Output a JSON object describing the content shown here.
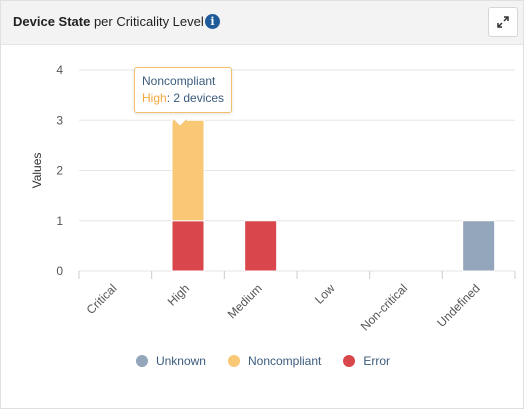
{
  "header": {
    "title_bold": "Device State",
    "title_rest": " per Criticality Level",
    "info_icon": "info-icon",
    "expand_icon": "expand-icon"
  },
  "tooltip": {
    "series": "Noncompliant",
    "category": "High",
    "value_text": ": 2 devices"
  },
  "colors": {
    "Unknown": "#93a6bc",
    "Noncompliant": "#f8c874",
    "Error": "#d9474d",
    "grid": "#e6e6e6",
    "axis_text": "#555555"
  },
  "chart_data": {
    "type": "bar",
    "stacked": true,
    "ylabel": "Values",
    "xlabel": "",
    "ylim": [
      0,
      4
    ],
    "yticks": [
      0,
      1,
      2,
      3,
      4
    ],
    "categories": [
      "Critical",
      "High",
      "Medium",
      "Low",
      "Non-critical",
      "Undefined"
    ],
    "series": [
      {
        "name": "Error",
        "values": [
          0,
          1,
          1,
          0,
          0,
          0
        ]
      },
      {
        "name": "Noncompliant",
        "values": [
          0,
          2,
          0,
          0,
          0,
          0
        ]
      },
      {
        "name": "Unknown",
        "values": [
          0,
          0,
          0,
          0,
          0,
          1
        ]
      }
    ],
    "legend": [
      "Unknown",
      "Noncompliant",
      "Error"
    ],
    "legend_position": "bottom",
    "grid": true
  }
}
